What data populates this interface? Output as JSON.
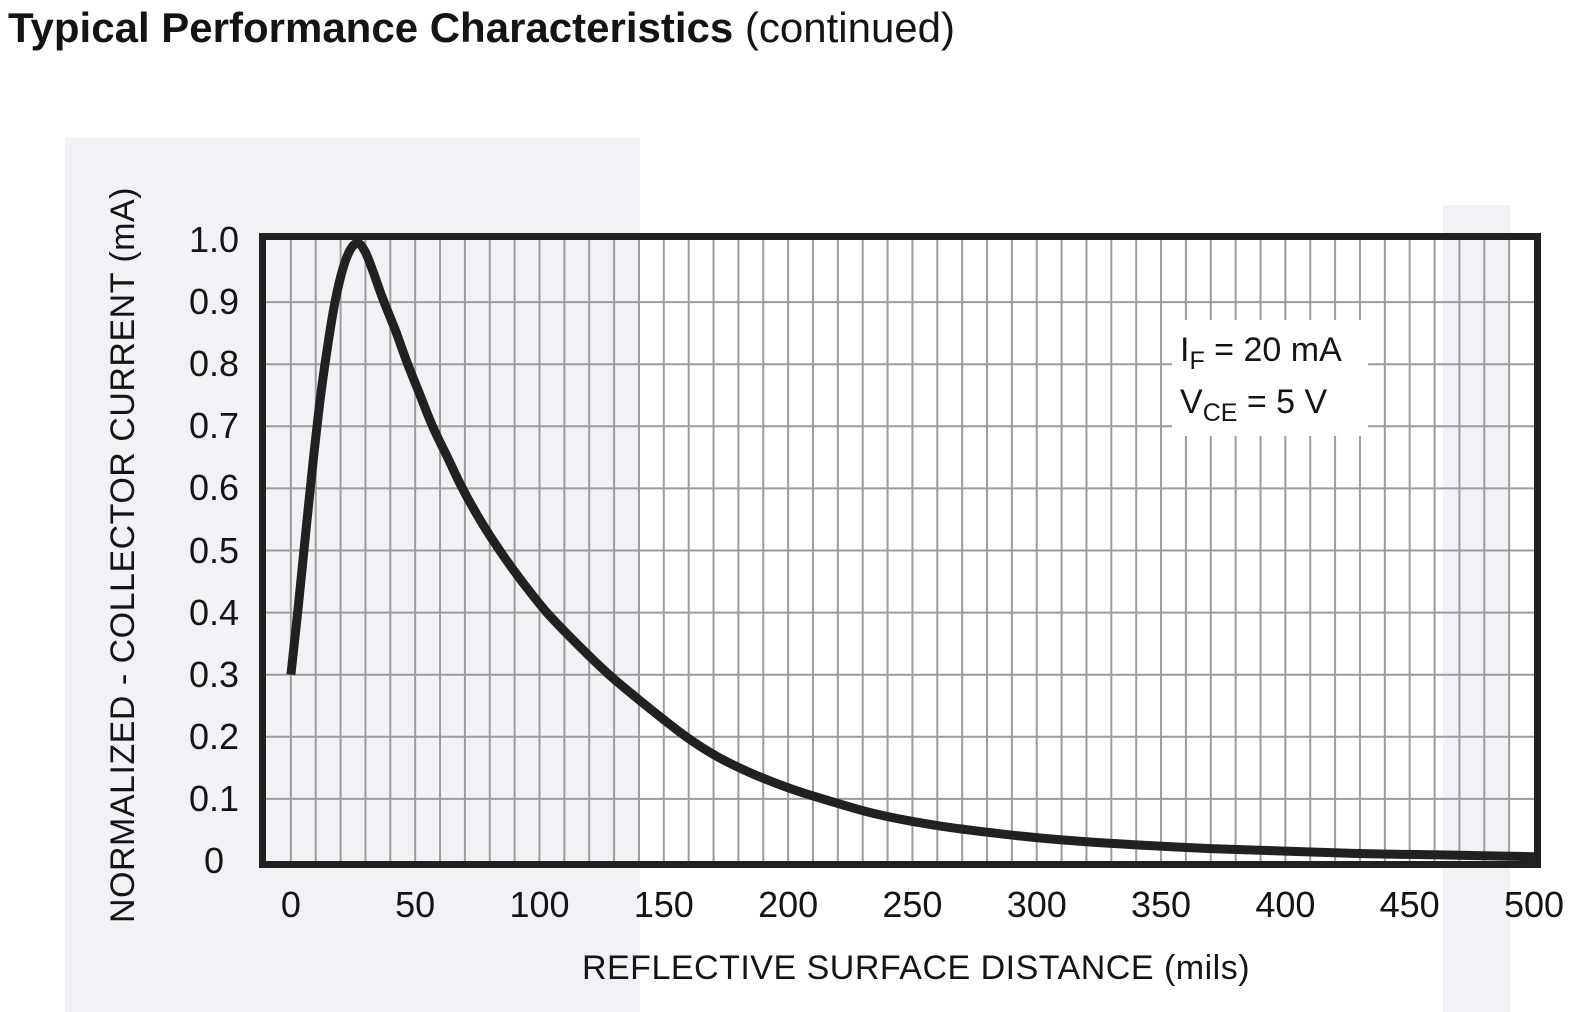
{
  "header": {
    "title": "Typical Performance Characteristics",
    "suffix": " (continued)"
  },
  "chart": {
    "y_axis_title": "NORMALIZED - COLLECTOR CURRENT (mA)",
    "x_axis_title": "REFLECTIVE SURFACE DISTANCE (mils)",
    "conditions": [
      {
        "symbol": "I",
        "subscript": "F",
        "rest": " = 20 mA"
      },
      {
        "symbol": "V",
        "subscript": "CE",
        "rest": " = 5 V"
      }
    ],
    "y_ticks": [
      {
        "label": "1.0",
        "value": 1.0
      },
      {
        "label": "0.9",
        "value": 0.9
      },
      {
        "label": "0.8",
        "value": 0.8
      },
      {
        "label": "0.7",
        "value": 0.7
      },
      {
        "label": "0.6",
        "value": 0.6
      },
      {
        "label": "0.5",
        "value": 0.5
      },
      {
        "label": "0.4",
        "value": 0.4
      },
      {
        "label": "0.3",
        "value": 0.3
      },
      {
        "label": "0.2",
        "value": 0.2
      },
      {
        "label": "0.1",
        "value": 0.1
      },
      {
        "label": "0",
        "value": 0.0
      }
    ],
    "x_ticks": [
      {
        "label": "0",
        "value": 0
      },
      {
        "label": "50",
        "value": 50
      },
      {
        "label": "100",
        "value": 100
      },
      {
        "label": "150",
        "value": 150
      },
      {
        "label": "200",
        "value": 200
      },
      {
        "label": "250",
        "value": 250
      },
      {
        "label": "300",
        "value": 300
      },
      {
        "label": "350",
        "value": 350
      },
      {
        "label": "400",
        "value": 400
      },
      {
        "label": "450",
        "value": 450
      },
      {
        "label": "500",
        "value": 500
      }
    ]
  },
  "chart_data": {
    "type": "line",
    "title": "Typical Performance Characteristics (continued)",
    "xlabel": "REFLECTIVE SURFACE DISTANCE (mils)",
    "ylabel": "NORMALIZED - COLLECTOR CURRENT (mA)",
    "xlim": [
      -10,
      500
    ],
    "ylim": [
      0,
      1.0
    ],
    "x_tick_values": [
      0,
      50,
      100,
      150,
      200,
      250,
      300,
      350,
      400,
      450,
      500
    ],
    "y_tick_values": [
      0,
      0.1,
      0.2,
      0.3,
      0.4,
      0.5,
      0.6,
      0.7,
      0.8,
      0.9,
      1.0
    ],
    "grid": {
      "on": true,
      "x_minor_step": 10,
      "y_step": 0.1
    },
    "legend": "none",
    "annotations": [
      "IF = 20 mA",
      "VCE = 5 V"
    ],
    "series": [
      {
        "name": "normalized collector current vs reflective surface distance",
        "points": [
          [
            0,
            0.3
          ],
          [
            3,
            0.41
          ],
          [
            6,
            0.53
          ],
          [
            9,
            0.645
          ],
          [
            12,
            0.75
          ],
          [
            15,
            0.835
          ],
          [
            18,
            0.905
          ],
          [
            21,
            0.955
          ],
          [
            24,
            0.985
          ],
          [
            27,
            0.995
          ],
          [
            30,
            0.98
          ],
          [
            33,
            0.95
          ],
          [
            37,
            0.905
          ],
          [
            42,
            0.855
          ],
          [
            47,
            0.8
          ],
          [
            52,
            0.75
          ],
          [
            57,
            0.7
          ],
          [
            63,
            0.65
          ],
          [
            69,
            0.6
          ],
          [
            76,
            0.55
          ],
          [
            84,
            0.5
          ],
          [
            93,
            0.45
          ],
          [
            103,
            0.4
          ],
          [
            115,
            0.35
          ],
          [
            128,
            0.3
          ],
          [
            143,
            0.25
          ],
          [
            159,
            0.2
          ],
          [
            172,
            0.167
          ],
          [
            186,
            0.14
          ],
          [
            200,
            0.118
          ],
          [
            214,
            0.1
          ],
          [
            235,
            0.076
          ],
          [
            260,
            0.057
          ],
          [
            285,
            0.044
          ],
          [
            310,
            0.034
          ],
          [
            340,
            0.026
          ],
          [
            370,
            0.02
          ],
          [
            400,
            0.016
          ],
          [
            430,
            0.012
          ],
          [
            460,
            0.01
          ],
          [
            500,
            0.007
          ]
        ]
      }
    ]
  },
  "colors": {
    "text": "#141414",
    "grid": "#9c9c9c",
    "frame": "#212121",
    "curve": "#212121",
    "background": "#ffffff",
    "scan_tint": "#f3f1f5"
  }
}
